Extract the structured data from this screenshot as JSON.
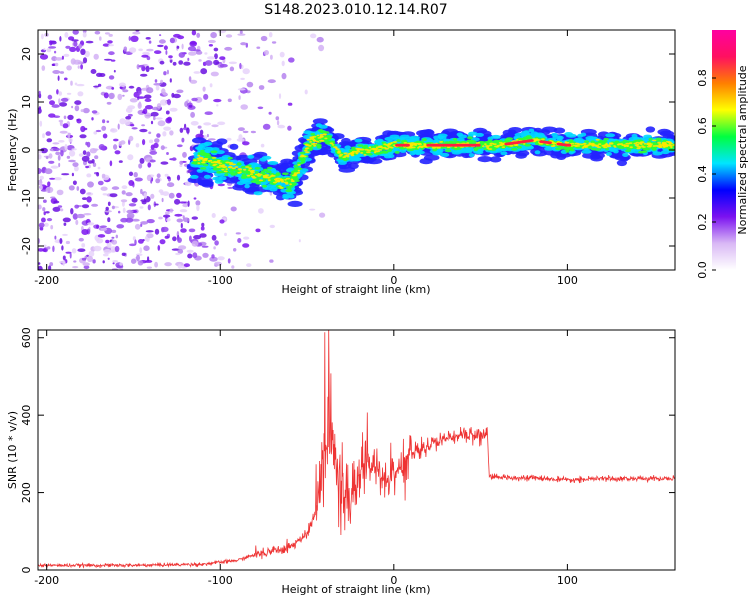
{
  "title": "S148.2023.010.12.14.R07",
  "chart_data": [
    {
      "type": "heatmap",
      "xlabel": "Height of straight line (km)",
      "ylabel": "Frequency (Hz)",
      "xlim": [
        -205,
        162
      ],
      "ylim": [
        -25,
        25
      ],
      "x_ticks": [
        -200,
        -100,
        0,
        100
      ],
      "y_ticks": [
        -20,
        -10,
        0,
        10,
        20
      ],
      "colorbar": {
        "label": "Normalized spectral amplitude",
        "range": [
          0.0,
          1.0
        ],
        "ticks": [
          0.0,
          0.2,
          0.4,
          0.6,
          0.8
        ],
        "colors": [
          "#ffffff",
          "#d9b8f5",
          "#7b12f0",
          "#0000ff",
          "#00e5ff",
          "#00ff40",
          "#ffff00",
          "#ff7f00",
          "#ff1060",
          "#ff00a0"
        ]
      },
      "ridge": {
        "x": [
          -110,
          -90,
          -70,
          -60,
          -55,
          -50,
          -45,
          -40,
          -35,
          -30,
          -25,
          -20,
          -10,
          0,
          10,
          20,
          40,
          60,
          80,
          100,
          120,
          140,
          162
        ],
        "freq": [
          -2,
          -4,
          -6,
          -7,
          -4,
          1,
          2,
          3,
          1,
          -1,
          -1,
          0,
          0,
          1,
          1,
          1,
          1,
          1,
          2,
          1,
          1,
          1,
          1
        ]
      }
    },
    {
      "type": "line",
      "xlabel": "Height of straight line (km)",
      "ylabel": "SNR (10 * v/v)",
      "xlim": [
        -205,
        162
      ],
      "ylim": [
        0,
        620
      ],
      "x_ticks": [
        -200,
        -100,
        0,
        100
      ],
      "y_ticks": [
        0,
        200,
        400,
        600
      ],
      "color": "#ee3333",
      "envelope": {
        "x": [
          -205,
          -150,
          -110,
          -90,
          -80,
          -60,
          -50,
          -45,
          -40,
          -38,
          -35,
          -30,
          -25,
          -20,
          -15,
          -10,
          -5,
          0,
          5,
          10,
          20,
          30,
          40,
          50,
          54,
          55,
          60,
          80,
          100,
          120,
          140,
          162
        ],
        "y": [
          12,
          12,
          15,
          25,
          40,
          60,
          90,
          150,
          280,
          380,
          300,
          200,
          180,
          230,
          280,
          260,
          220,
          260,
          280,
          300,
          320,
          340,
          350,
          350,
          345,
          240,
          240,
          238,
          232,
          236,
          236,
          236
        ]
      }
    }
  ]
}
